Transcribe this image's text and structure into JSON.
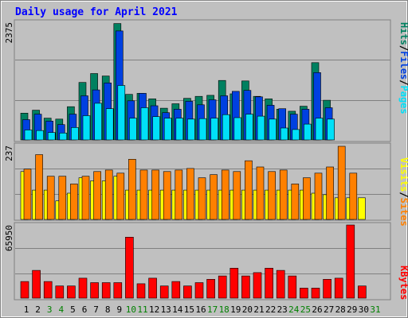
{
  "chart_data": [
    {
      "type": "bar",
      "title": "Daily usage for April 2021",
      "x": [
        "1",
        "2",
        "3",
        "4",
        "5",
        "6",
        "7",
        "8",
        "9",
        "10",
        "11",
        "12",
        "13",
        "14",
        "15",
        "16",
        "17",
        "18",
        "19",
        "20",
        "21",
        "22",
        "23",
        "24",
        "25",
        "26",
        "27",
        "28",
        "29",
        "30",
        "31"
      ],
      "weekend_days": [
        "3",
        "4",
        "10",
        "11",
        "17",
        "18",
        "24",
        "25",
        "31"
      ],
      "ymax_label": "2375",
      "legend": [
        "Pages",
        "Files",
        "Hits"
      ],
      "legend_colors": [
        "#00e0f8",
        "#0040e0",
        "#008060"
      ],
      "series": [
        {
          "name": "Hits",
          "values": [
            540,
            600,
            440,
            420,
            670,
            1160,
            1340,
            1290,
            2350,
            920,
            940,
            830,
            640,
            730,
            840,
            880,
            900,
            1200,
            930,
            1190,
            880,
            830,
            620,
            580,
            680,
            1560,
            800,
            0,
            0,
            0,
            0
          ]
        },
        {
          "name": "Files",
          "values": [
            410,
            520,
            380,
            310,
            520,
            890,
            1010,
            1150,
            2200,
            790,
            940,
            690,
            550,
            620,
            780,
            710,
            810,
            890,
            980,
            1000,
            870,
            700,
            630,
            520,
            620,
            1360,
            650,
            0,
            0,
            0,
            0
          ]
        },
        {
          "name": "Pages",
          "values": [
            200,
            190,
            150,
            140,
            250,
            490,
            740,
            630,
            1100,
            440,
            650,
            470,
            440,
            440,
            420,
            430,
            440,
            510,
            450,
            520,
            480,
            420,
            240,
            210,
            320,
            440,
            420,
            0,
            0,
            0,
            0
          ]
        }
      ]
    },
    {
      "type": "bar",
      "ymax_label": "237",
      "legend": [
        "Sites",
        "Visits"
      ],
      "legend_colors": [
        "#ff8000",
        "#ffff00"
      ],
      "series": [
        {
          "name": "Visits",
          "values": [
            155,
            95,
            95,
            60,
            85,
            135,
            125,
            125,
            140,
            95,
            95,
            95,
            95,
            95,
            95,
            95,
            95,
            95,
            95,
            95,
            95,
            95,
            95,
            95,
            95,
            85,
            80,
            70,
            70,
            70,
            0
          ]
        },
        {
          "name": "Sites",
          "values": [
            163,
            210,
            140,
            140,
            115,
            140,
            155,
            160,
            150,
            195,
            160,
            160,
            155,
            160,
            165,
            135,
            145,
            160,
            155,
            190,
            170,
            155,
            160,
            115,
            135,
            150,
            170,
            237,
            150,
            0,
            0
          ]
        }
      ]
    },
    {
      "type": "bar",
      "ymax_label": "65950",
      "legend": [
        "KBytes"
      ],
      "legend_colors": [
        "#ff0000"
      ],
      "series": [
        {
          "name": "KBytes",
          "values": [
            15000,
            25000,
            15000,
            11000,
            11000,
            18000,
            14000,
            14000,
            14000,
            55000,
            13000,
            18000,
            11000,
            15000,
            11000,
            14000,
            17000,
            20000,
            27000,
            20000,
            23000,
            27000,
            25000,
            20000,
            9000,
            9000,
            17000,
            18000,
            65950,
            11000,
            0
          ]
        }
      ]
    }
  ],
  "colors": {
    "background": "#c0c0c0",
    "frame_light": "#e0e0e0",
    "frame_dark": "#808080",
    "title": "#0000ff",
    "weekday_label": "#000000",
    "weekend_label": "#008000",
    "grid": "#808080"
  }
}
